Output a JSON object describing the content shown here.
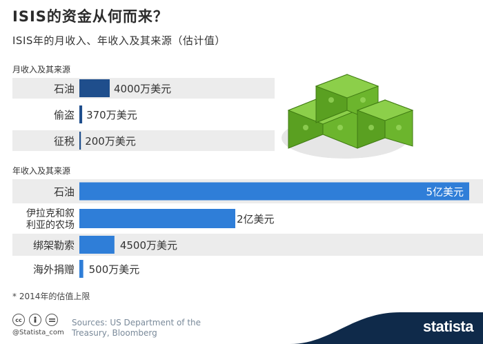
{
  "header": {
    "title": "ISIS的资金从何而来？",
    "subtitle": "ISIS年的月收入、年收入及其来源（估计值）"
  },
  "chart_data": [
    {
      "type": "bar",
      "title": "月收入及其来源",
      "categories": [
        "石油",
        "偷盗",
        "征税"
      ],
      "values": [
        40000000,
        3700000,
        2000000
      ],
      "value_labels": [
        "4000万美元",
        "370万美元",
        "200万美元"
      ],
      "unit": "美元",
      "orientation": "horizontal",
      "bar_color": "#1f4e8c",
      "grid": false
    },
    {
      "type": "bar",
      "title": "年收入及其来源",
      "categories": [
        "石油",
        "伊拉克和叙\n利亚的农场",
        "绑架勒索",
        "海外捐赠"
      ],
      "values": [
        500000000,
        200000000,
        45000000,
        5000000
      ],
      "value_labels": [
        "5亿美元",
        "2亿美元",
        "4500万美元",
        "500万美元"
      ],
      "unit": "美元",
      "orientation": "horizontal",
      "bar_color": "#2f7ed8",
      "grid": false
    }
  ],
  "footer": {
    "footnote": "* 2014年的估值上限",
    "handle": "@Statista_com",
    "source": "Sources: US Department of the Treasury, Bloomberg",
    "brand": "statista",
    "license_icons": [
      "cc-icon",
      "person-icon",
      "equals-icon"
    ]
  },
  "colors": {
    "row_band": "#ececec",
    "dark_bar": "#1f4e8c",
    "light_bar": "#2f7ed8",
    "brand_bg": "#0f2a4a",
    "money_green": "#6cb52d"
  },
  "illustration": {
    "icon": "money-stack-icon"
  }
}
